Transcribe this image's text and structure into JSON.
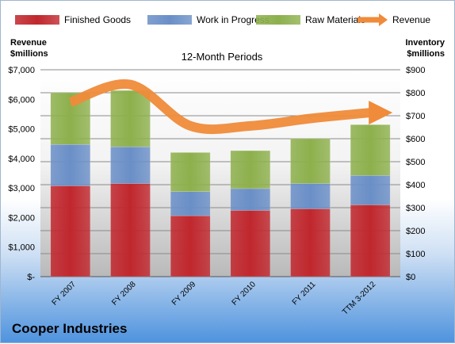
{
  "chart_data": {
    "type": "bar",
    "stacked": true,
    "title": "12-Month Periods",
    "company": "Cooper Industries",
    "left_axis_label_line1": "Revenue",
    "left_axis_label_line2": "$millions",
    "right_axis_label_line1": "Inventory",
    "right_axis_label_line2": "$millions",
    "categories": [
      "FY 2007",
      "FY 2008",
      "FY 2009",
      "FY 2010",
      "FY 2011",
      "TTM 3-2012"
    ],
    "left_ylim": [
      0,
      7000
    ],
    "right_ylim": [
      0,
      900
    ],
    "left_ticks": [
      "$-",
      "$1,000",
      "$2,000",
      "$3,000",
      "$4,000",
      "$5,000",
      "$6,000",
      "$7,000"
    ],
    "right_ticks": [
      "$0",
      "$100",
      "$200",
      "$300",
      "$400",
      "$500",
      "$600",
      "$700",
      "$800",
      "$900"
    ],
    "series": [
      {
        "name": "Finished Goods",
        "axis": "right",
        "color": "#c0272d",
        "values": [
          395,
          405,
          265,
          288,
          295,
          312
        ]
      },
      {
        "name": "Work in Progress",
        "axis": "right",
        "color": "#6a8fc7",
        "values": [
          180,
          160,
          105,
          95,
          110,
          128
        ]
      },
      {
        "name": "Raw Materials",
        "axis": "right",
        "color": "#8db04c",
        "values": [
          225,
          245,
          170,
          165,
          195,
          221
        ]
      },
      {
        "name": "Revenue",
        "axis": "left",
        "color": "#ef8b3a",
        "type": "line",
        "values": [
          5900,
          6500,
          5100,
          5100,
          5350,
          5550
        ]
      }
    ],
    "grid": true,
    "legend_position": "top"
  }
}
